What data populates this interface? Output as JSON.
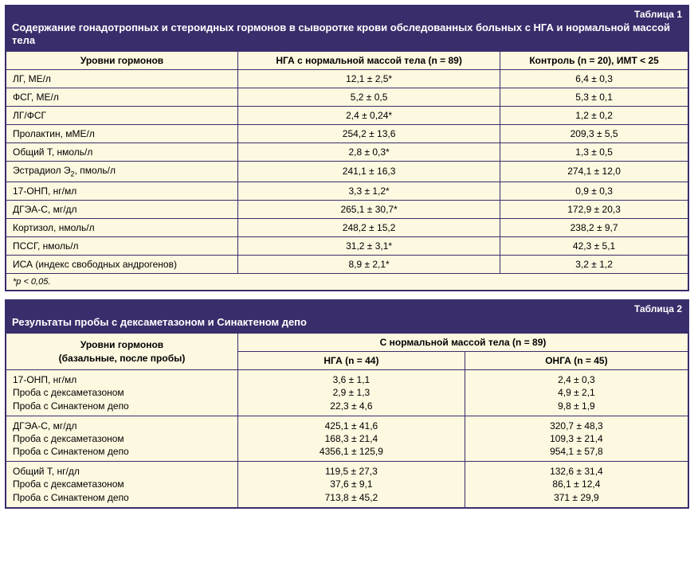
{
  "table1": {
    "number": "Таблица 1",
    "title": "Содержание гонадотропных и стероидных гормонов в сыворотке крови обследованных больных с НГА и нормальной массой тела",
    "columns": [
      "Уровни гормонов",
      "НГА с нормальной массой тела (n =  89)",
      "Контроль (n =  20), ИМТ < 25"
    ],
    "rows": [
      [
        "ЛГ, МЕ/л",
        "12,1 ± 2,5*",
        "6,4 ± 0,3"
      ],
      [
        "ФСГ, МЕ/л",
        "5,2 ± 0,5",
        "5,3 ± 0,1"
      ],
      [
        "ЛГ/ФСГ",
        "2,4 ± 0,24*",
        "1,2 ± 0,2"
      ],
      [
        "Пролактин, мМЕ/л",
        "254,2 ± 13,6",
        "209,3 ± 5,5"
      ],
      [
        "Общий Т, нмоль/л",
        "2,8 ± 0,3*",
        "1,3 ± 0,5"
      ],
      [
        "__E2__",
        "241,1 ± 16,3",
        "274,1 ± 12,0"
      ],
      [
        "17-ОНП, нг/мл",
        "3,3 ± 1,2*",
        "0,9 ± 0,3"
      ],
      [
        "ДГЭА-С, мг/дл",
        "265,1 ± 30,7*",
        "172,9 ± 20,3"
      ],
      [
        "Кортизол, нмоль/л",
        "248,2 ± 15,2",
        "238,2 ± 9,7"
      ],
      [
        "ПССГ, нмоль/л",
        "31,2 ± 3,1*",
        "42,3 ± 5,1"
      ],
      [
        "ИСА (индекс свободных андрогенов)",
        "8,9 ± 2,1*",
        "3,2 ± 1,2"
      ]
    ],
    "e2_label_prefix": "Эстрадиол Э",
    "e2_label_sub": "2",
    "e2_label_suffix": ", пмоль/л",
    "footnote": "*p < 0,05."
  },
  "table2": {
    "number": "Таблица 2",
    "title": "Результаты пробы с дексаметазоном и Синактеном депо",
    "header_row1_col1": "Уровни гормонов\n(базальные, после пробы)",
    "header_row1_col2": "С нормальной массой тела (n =  89)",
    "header_row2": [
      "НГА (n = 44)",
      "ОНГА (n = 45)"
    ],
    "groups": [
      {
        "label": "17-ОНП, нг/мл\nПроба с дексаметазоном\nПроба с Синактеном депо",
        "c1": "3,6 ± 1,1\n2,9 ± 1,3\n22,3 ± 4,6",
        "c2": "2,4 ± 0,3\n4,9 ± 2,1\n9,8 ± 1,9"
      },
      {
        "label": "ДГЭА-С, мг/дл\nПроба с дексаметазоном\nПроба с Синактеном депо",
        "c1": "425,1 ± 41,6\n168,3 ± 21,4\n4356,1 ± 125,9",
        "c2": "320,7 ± 48,3\n109,3 ± 21,4\n954,1 ± 57,8"
      },
      {
        "label": "Общий Т, нг/дл\nПроба с дексаметазоном\nПроба с Синактеном депо",
        "c1": "119,5 ± 27,3\n37,6 ± 9,1\n713,8 ± 45,2",
        "c2": "132,6 ± 31,4\n86,1 ± 12,4\n371 ± 29,9"
      }
    ]
  }
}
